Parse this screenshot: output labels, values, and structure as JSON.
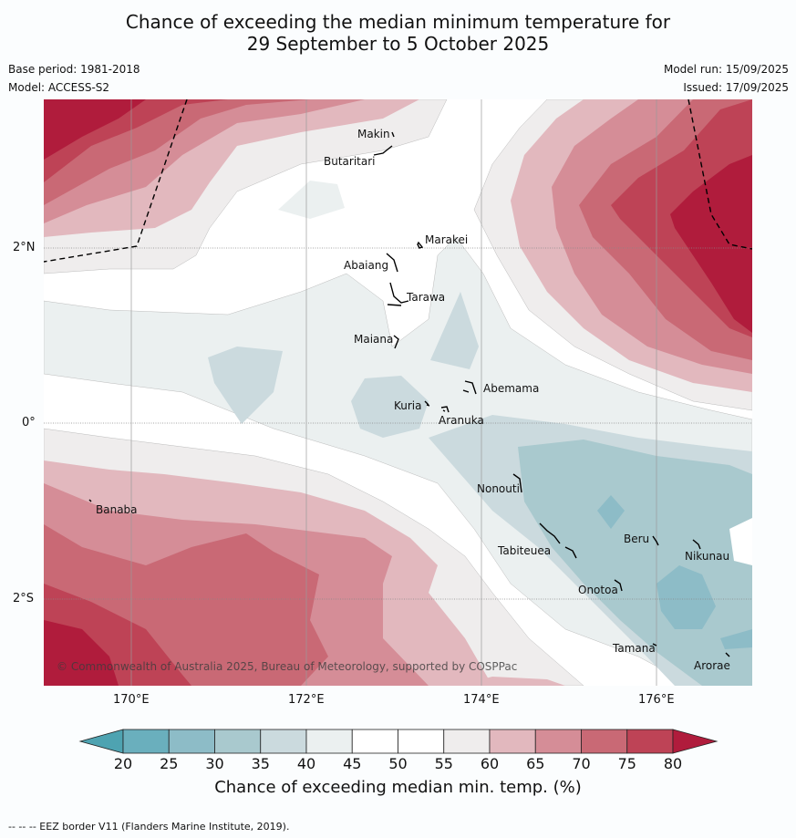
{
  "title_line1": "Chance of exceeding the median minimum temperature for",
  "title_line2": "29 September to 5 October 2025",
  "base_period": "Base period: 1981-2018",
  "model": "Model: ACCESS-S2",
  "model_run": "Model run: 15/09/2025",
  "issued": "Issued: 17/09/2025",
  "copyright": "© Commonwealth of Australia 2025, Bureau of Meteorology, supported by COSPPac",
  "footer": "--  --  -- EEZ border V11 (Flanders Marine Institute, 2019).",
  "lat_labels": [
    "2°N",
    "0°",
    "2°S"
  ],
  "lon_labels": [
    "170°E",
    "172°E",
    "174°E",
    "176°E"
  ],
  "places": {
    "makin": "Makin",
    "butaritari": "Butaritari",
    "marakei": "Marakei",
    "abaiang": "Abaiang",
    "tarawa": "Tarawa",
    "maiana": "Maiana",
    "abemama": "Abemama",
    "kuria": "Kuria",
    "aranuka": "Aranuka",
    "banaba": "Banaba",
    "nonouti": "Nonouti",
    "tabiteuea": "Tabiteuea",
    "beru": "Beru",
    "nikunau": "Nikunau",
    "onotoa": "Onotoa",
    "tamana": "Tamana",
    "arorae": "Arorae"
  },
  "colorbar": {
    "title": "Chance of exceeding median min. temp. (%)",
    "ticks": [
      "20",
      "25",
      "30",
      "35",
      "40",
      "45",
      "50",
      "55",
      "60",
      "65",
      "70",
      "75",
      "80"
    ],
    "colors": [
      "#6aafbd",
      "#8dbcc7",
      "#a9c9ce",
      "#cbdade",
      "#ebf0f0",
      "#ffffff",
      "#ffffff",
      "#efeded",
      "#e2b8be",
      "#d58d97",
      "#c96975",
      "#be4356"
    ],
    "under_color": "#4ea3b1",
    "over_color": "#b01c3c"
  }
}
